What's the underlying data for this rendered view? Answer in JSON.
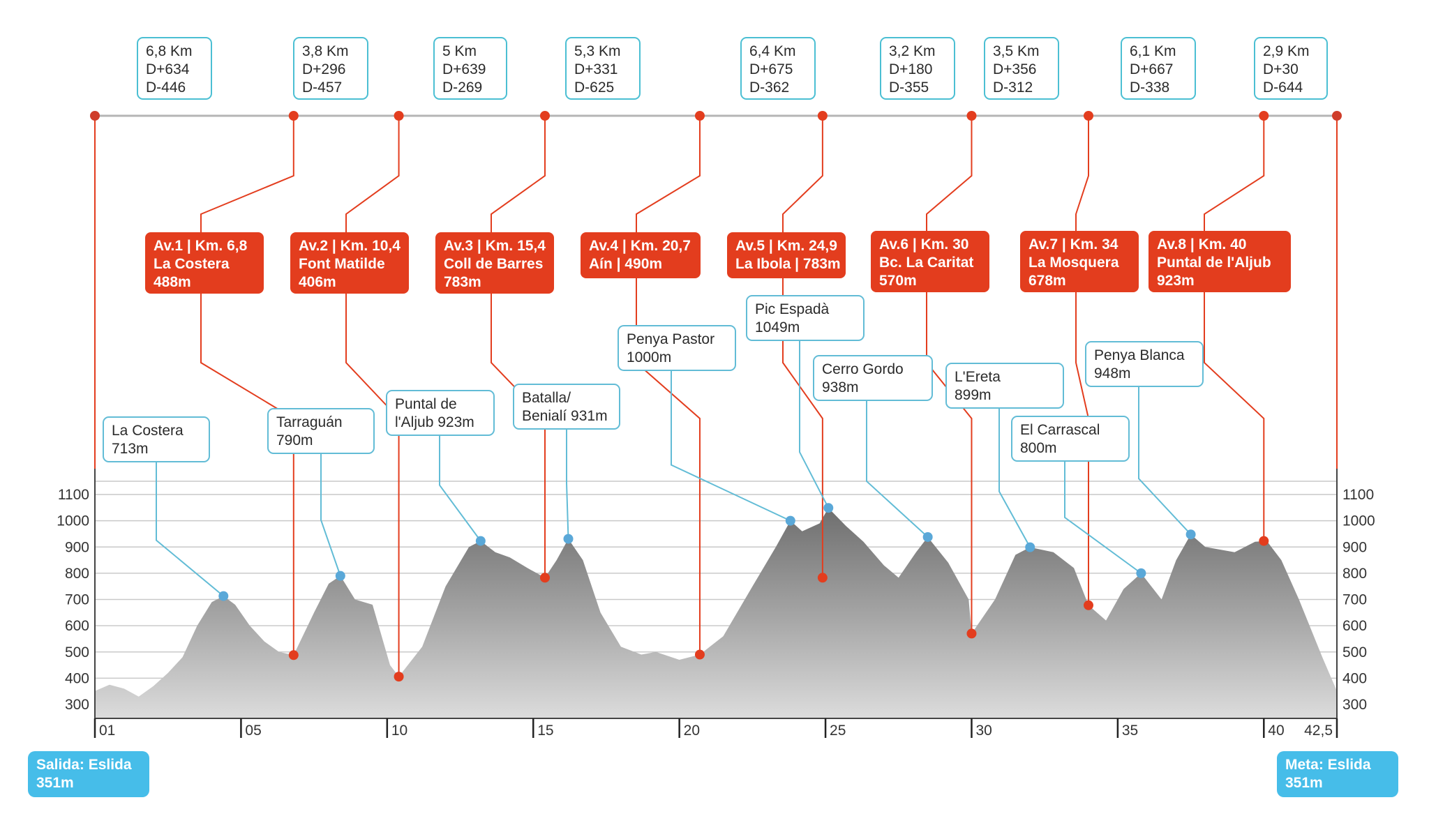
{
  "chart_data": {
    "type": "area",
    "title": "",
    "xlabel": "",
    "ylabel": "",
    "xlim": [
      0,
      42.5
    ],
    "ylim": [
      255,
      1120
    ],
    "y_ticks": [
      300,
      400,
      500,
      600,
      700,
      800,
      900,
      1000,
      1100
    ],
    "x_ticks": [
      {
        "km": 0,
        "label": "01"
      },
      {
        "km": 5,
        "label": "05"
      },
      {
        "km": 10,
        "label": "10"
      },
      {
        "km": 15,
        "label": "15"
      },
      {
        "km": 20,
        "label": "20"
      },
      {
        "km": 25,
        "label": "25"
      },
      {
        "km": 30,
        "label": "30"
      },
      {
        "km": 35,
        "label": "35"
      },
      {
        "km": 40,
        "label": "40"
      },
      {
        "km": 42.5,
        "label": "42,5"
      }
    ],
    "grid": true,
    "colors": {
      "area_top": "#7a7a7a",
      "area_bottom": "#d9d9d9",
      "aid": "#e33d1e",
      "peak": "#62bcd6",
      "segment_border": "#4bbfd3",
      "endpoints": "#46bde9"
    },
    "profile": [
      [
        0,
        351
      ],
      [
        0.5,
        375
      ],
      [
        1,
        360
      ],
      [
        1.5,
        330
      ],
      [
        2,
        370
      ],
      [
        2.5,
        420
      ],
      [
        3,
        480
      ],
      [
        3.5,
        600
      ],
      [
        4,
        690
      ],
      [
        4.4,
        713
      ],
      [
        4.8,
        680
      ],
      [
        5.3,
        600
      ],
      [
        5.8,
        540
      ],
      [
        6.3,
        500
      ],
      [
        6.8,
        488
      ],
      [
        7.5,
        650
      ],
      [
        8,
        760
      ],
      [
        8.4,
        790
      ],
      [
        8.9,
        700
      ],
      [
        9.5,
        680
      ],
      [
        10.1,
        450
      ],
      [
        10.4,
        406
      ],
      [
        11.2,
        520
      ],
      [
        12,
        750
      ],
      [
        12.8,
        900
      ],
      [
        13.2,
        923
      ],
      [
        13.7,
        880
      ],
      [
        14.2,
        860
      ],
      [
        14.8,
        820
      ],
      [
        15.4,
        783
      ],
      [
        15.8,
        850
      ],
      [
        16.2,
        931
      ],
      [
        16.7,
        850
      ],
      [
        17.3,
        650
      ],
      [
        18,
        520
      ],
      [
        18.7,
        490
      ],
      [
        19.2,
        500
      ],
      [
        20,
        470
      ],
      [
        20.7,
        490
      ],
      [
        21.5,
        560
      ],
      [
        22.5,
        750
      ],
      [
        23.3,
        900
      ],
      [
        23.8,
        1000
      ],
      [
        24.2,
        960
      ],
      [
        24.8,
        990
      ],
      [
        25.1,
        1049
      ],
      [
        25.7,
        980
      ],
      [
        26.3,
        920
      ],
      [
        27,
        830
      ],
      [
        27.5,
        783
      ],
      [
        28.1,
        880
      ],
      [
        28.5,
        938
      ],
      [
        29.2,
        840
      ],
      [
        29.9,
        700
      ],
      [
        30,
        570
      ],
      [
        30.8,
        700
      ],
      [
        31.5,
        870
      ],
      [
        32,
        899
      ],
      [
        32.8,
        880
      ],
      [
        33.5,
        820
      ],
      [
        34,
        678
      ],
      [
        34.6,
        620
      ],
      [
        35.2,
        740
      ],
      [
        35.8,
        800
      ],
      [
        36.5,
        700
      ],
      [
        37,
        850
      ],
      [
        37.5,
        948
      ],
      [
        38,
        900
      ],
      [
        39,
        880
      ],
      [
        39.7,
        920
      ],
      [
        40.1,
        923
      ],
      [
        40.6,
        850
      ],
      [
        41.2,
        700
      ],
      [
        42,
        480
      ],
      [
        42.5,
        351
      ]
    ],
    "segments": [
      {
        "line1": "6,8 Km",
        "line2": "D+634",
        "line3": "D-446"
      },
      {
        "line1": "3,8 Km",
        "line2": "D+296",
        "line3": "D-457"
      },
      {
        "line1": "5 Km",
        "line2": "D+639",
        "line3": "D-269"
      },
      {
        "line1": "5,3 Km",
        "line2": "D+331",
        "line3": "D-625"
      },
      {
        "line1": "6,4 Km",
        "line2": "D+675",
        "line3": "D-362"
      },
      {
        "line1": "3,2 Km",
        "line2": "D+180",
        "line3": "D-355"
      },
      {
        "line1": "3,5 Km",
        "line2": "D+356",
        "line3": "D-312"
      },
      {
        "line1": "6,1 Km",
        "line2": "D+667",
        "line3": "D-338"
      },
      {
        "line1": "2,9 Km",
        "line2": "D+30",
        "line3": "D-644"
      }
    ],
    "aid_stations": [
      {
        "km": 6.8,
        "alt": 488,
        "line1": "Av.1 | Km. 6,8",
        "line2": "La Costera",
        "line3": "488m"
      },
      {
        "km": 10.4,
        "alt": 406,
        "line1": "Av.2 | Km. 10,4",
        "line2": "Font Matilde",
        "line3": "406m"
      },
      {
        "km": 15.4,
        "alt": 783,
        "line1": "Av.3 | Km. 15,4",
        "line2": "Coll de Barres",
        "line3": "783m"
      },
      {
        "km": 20.7,
        "alt": 490,
        "line1": "Av.4 | Km. 20,7",
        "line2": "Aín | 490m",
        "line3": ""
      },
      {
        "km": 24.9,
        "alt": 783,
        "line1": "Av.5 | Km. 24,9",
        "line2": "La Ibola | 783m",
        "line3": ""
      },
      {
        "km": 30,
        "alt": 570,
        "line1": "Av.6 | Km. 30",
        "line2": "Bc. La Caritat",
        "line3": "570m"
      },
      {
        "km": 34,
        "alt": 678,
        "line1": "Av.7 | Km. 34",
        "line2": "La Mosquera",
        "line3": "678m"
      },
      {
        "km": 40,
        "alt": 923,
        "line1": "Av.8 | Km. 40",
        "line2": "Puntal de l'Aljub",
        "line3": "923m"
      }
    ],
    "peaks": [
      {
        "km": 4.4,
        "alt": 713,
        "line1": "La Costera",
        "line2": "713m"
      },
      {
        "km": 8.4,
        "alt": 790,
        "line1": "Tarraguán",
        "line2": "790m"
      },
      {
        "km": 13.2,
        "alt": 923,
        "line1": "Puntal de",
        "line2": "l'Aljub 923m"
      },
      {
        "km": 16.2,
        "alt": 931,
        "line1": "Batalla/",
        "line2": "Benialí 931m"
      },
      {
        "km": 23.8,
        "alt": 1000,
        "line1": "Penya Pastor",
        "line2": "1000m"
      },
      {
        "km": 25.1,
        "alt": 1049,
        "line1": "Pic Espadà",
        "line2": "1049m"
      },
      {
        "km": 28.5,
        "alt": 938,
        "line1": "Cerro Gordo",
        "line2": "938m"
      },
      {
        "km": 32,
        "alt": 899,
        "line1": "L'Ereta",
        "line2": "899m"
      },
      {
        "km": 35.8,
        "alt": 800,
        "line1": "El Carrascal",
        "line2": "800m"
      },
      {
        "km": 37.5,
        "alt": 948,
        "line1": "Penya Blanca",
        "line2": "948m"
      }
    ],
    "start": {
      "line1": "Salida: Eslida",
      "line2": "351m"
    },
    "finish": {
      "line1": "Meta: Eslida",
      "line2": "351m"
    }
  }
}
